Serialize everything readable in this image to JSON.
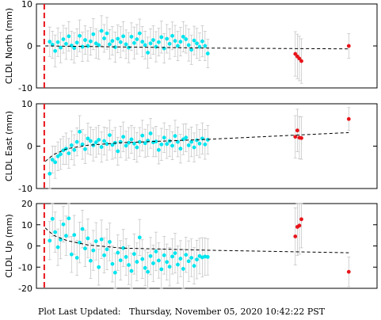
{
  "footer": {
    "label": "Plot Last Updated:",
    "timestamp": "Thursday, November 05, 2020 10:42:22 PST"
  },
  "colors": {
    "main_points": "#00e5ee",
    "recent_points": "#e8141a",
    "event_line": "#e8141a",
    "errorbars": "#c0c0c0",
    "trend": "#000000"
  },
  "chart_data": [
    {
      "type": "scatter",
      "ylabel": "CLDL North (mm)",
      "ylim": [
        -10,
        10
      ],
      "yticks": [
        -10,
        0,
        10
      ],
      "grid": false,
      "legend": "none",
      "x_range": [
        0,
        100
      ],
      "event_line_x": 2.3,
      "series": [
        {
          "kind": "main",
          "x": [
            3.9,
            4.7,
            5.5,
            6.3,
            7.1,
            7.9,
            8.7,
            9.5,
            10.3,
            11.1,
            11.9,
            12.7,
            13.5,
            14.3,
            15.1,
            15.9,
            16.7,
            17.5,
            18.3,
            19.1,
            19.9,
            20.7,
            21.5,
            22.3,
            23.1,
            23.9,
            24.7,
            25.5,
            26.3,
            27.1,
            27.9,
            28.7,
            29.5,
            30.3,
            31.1,
            31.9,
            32.7,
            33.5,
            34.3,
            35.1,
            35.9,
            36.7,
            37.5,
            38.3,
            39.1,
            39.9,
            40.7,
            41.5,
            42.3,
            43.1,
            43.9,
            44.7,
            45.5,
            46.3,
            47.1,
            47.9,
            48.7,
            49.5,
            50.3
          ],
          "y": [
            1.0,
            0.3,
            -1.2,
            0.9,
            -0.4,
            1.6,
            0.5,
            2.3,
            0.1,
            -0.5,
            0.8,
            2.4,
            -0.2,
            1.4,
            0.0,
            1.1,
            2.8,
            0.6,
            0.2,
            3.6,
            1.8,
            3.0,
            0.4,
            1.2,
            -0.3,
            1.7,
            0.9,
            2.3,
            0.4,
            -0.4,
            2.2,
            0.7,
            1.6,
            3.0,
            1.0,
            0.2,
            -1.6,
            0.6,
            1.4,
            -0.2,
            0.9,
            2.1,
            -0.6,
            1.7,
            0.5,
            2.4,
            1.2,
            0.0,
            1.0,
            2.2,
            1.6,
            0.2,
            -0.9,
            1.3,
            0.6,
            -0.2,
            1.1,
            0.0,
            -1.8
          ],
          "err": [
            3.5,
            3.2,
            3.8,
            3.4,
            3.6,
            3.3,
            3.7,
            3.5,
            3.4,
            3.6,
            3.3,
            3.8,
            3.5,
            3.4,
            3.6,
            3.3,
            3.7,
            3.5,
            3.4,
            3.6,
            3.3,
            3.8,
            3.5,
            3.4,
            3.6,
            3.3,
            3.7,
            3.5,
            3.4,
            3.6,
            3.3,
            3.8,
            3.5,
            3.4,
            3.6,
            3.3,
            3.7,
            3.5,
            3.4,
            3.6,
            3.3,
            3.8,
            3.5,
            3.4,
            3.6,
            3.3,
            3.7,
            3.5,
            3.4,
            3.6,
            3.3,
            3.8,
            3.5,
            3.4,
            3.6,
            3.3,
            3.7,
            3.5,
            3.4
          ]
        },
        {
          "kind": "recent",
          "x": [
            76.0,
            76.6,
            77.2,
            77.8,
            91.7
          ],
          "y": [
            -1.9,
            -2.5,
            -3.0,
            -3.6,
            0.0
          ],
          "err": [
            5.3,
            5.3,
            5.3,
            5.3,
            2.9
          ]
        }
      ],
      "trend": {
        "x": [
          2.6,
          50.3,
          91.7
        ],
        "y": [
          0.0,
          -0.5,
          -0.7
        ]
      }
    },
    {
      "type": "scatter",
      "ylabel": "CLDL East (mm)",
      "ylim": [
        -10,
        10
      ],
      "yticks": [
        -10,
        0,
        10
      ],
      "grid": false,
      "legend": "none",
      "x_range": [
        0,
        100
      ],
      "event_line_x": 2.3,
      "series": [
        {
          "kind": "main",
          "x": [
            3.9,
            4.7,
            5.5,
            6.3,
            7.1,
            7.9,
            8.7,
            9.5,
            10.3,
            11.1,
            11.9,
            12.7,
            13.5,
            14.3,
            15.1,
            15.9,
            16.7,
            17.5,
            18.3,
            19.1,
            19.9,
            20.7,
            21.5,
            22.3,
            23.1,
            23.9,
            24.7,
            25.5,
            26.3,
            27.1,
            27.9,
            28.7,
            29.5,
            30.3,
            31.1,
            31.9,
            32.7,
            33.5,
            34.3,
            35.1,
            35.9,
            36.7,
            37.5,
            38.3,
            39.1,
            39.9,
            40.7,
            41.5,
            42.3,
            43.1,
            43.9,
            44.7,
            45.5,
            46.3,
            47.1,
            47.9,
            48.7,
            49.5,
            50.3
          ],
          "y": [
            -6.5,
            -3.2,
            -3.8,
            -2.4,
            -1.9,
            -1.0,
            -0.6,
            -1.7,
            0.2,
            -0.9,
            1.0,
            3.4,
            0.4,
            -0.7,
            1.8,
            1.2,
            0.2,
            0.9,
            1.5,
            -0.2,
            1.2,
            0.5,
            2.6,
            0.3,
            0.8,
            -1.2,
            1.0,
            2.2,
            0.1,
            0.8,
            1.6,
            0.6,
            -0.3,
            1.0,
            2.5,
            0.7,
            1.3,
            3.0,
            0.9,
            1.1,
            -0.9,
            0.4,
            2.0,
            0.5,
            1.2,
            0.1,
            2.4,
            1.0,
            -0.6,
            1.6,
            2.0,
            0.2,
            1.0,
            -0.3,
            1.4,
            0.6,
            1.8,
            0.4,
            1.5
          ],
          "err": [
            3.5,
            3.2,
            3.8,
            3.4,
            3.6,
            3.3,
            3.7,
            3.5,
            3.4,
            3.6,
            3.3,
            3.8,
            3.5,
            3.4,
            3.6,
            3.3,
            3.7,
            3.5,
            3.4,
            3.6,
            3.3,
            3.8,
            3.5,
            3.4,
            3.6,
            3.3,
            3.7,
            3.5,
            3.4,
            3.6,
            3.3,
            3.8,
            3.5,
            3.4,
            3.6,
            3.3,
            3.7,
            3.5,
            3.4,
            3.6,
            3.3,
            3.8,
            3.5,
            3.4,
            3.6,
            3.3,
            3.7,
            3.5,
            3.4,
            3.6,
            3.3,
            3.8,
            3.5,
            3.4,
            3.6,
            3.3,
            3.7,
            3.5,
            3.4
          ]
        },
        {
          "kind": "recent",
          "x": [
            76.0,
            76.6,
            77.2,
            77.8,
            91.7
          ],
          "y": [
            2.2,
            3.7,
            2.0,
            1.9,
            6.4
          ],
          "err": [
            5.0,
            5.0,
            5.0,
            5.0,
            2.7
          ]
        }
      ],
      "trend": {
        "x": [
          2.6,
          5.0,
          9.0,
          15.0,
          25.0,
          50.3,
          91.7
        ],
        "y": [
          -3.6,
          -2.0,
          -0.6,
          0.2,
          0.8,
          1.6,
          3.2
        ]
      }
    },
    {
      "type": "scatter",
      "ylabel": "CLDL Up (mm)",
      "ylim": [
        -20,
        20
      ],
      "yticks": [
        -20,
        -10,
        0,
        10,
        20
      ],
      "grid": false,
      "legend": "none",
      "x_range": [
        0,
        100
      ],
      "event_line_x": 2.3,
      "series": [
        {
          "kind": "main",
          "x": [
            3.9,
            4.7,
            5.5,
            6.3,
            7.1,
            7.9,
            8.7,
            9.5,
            10.3,
            11.1,
            11.9,
            12.7,
            13.5,
            14.3,
            15.1,
            15.9,
            16.7,
            17.5,
            18.3,
            19.1,
            19.9,
            20.7,
            21.5,
            22.3,
            23.1,
            23.9,
            24.7,
            25.5,
            26.3,
            27.1,
            27.9,
            28.7,
            29.5,
            30.3,
            31.1,
            31.9,
            32.7,
            33.5,
            34.3,
            35.1,
            35.9,
            36.7,
            37.5,
            38.3,
            39.1,
            39.9,
            40.7,
            41.5,
            42.3,
            43.1,
            43.9,
            44.7,
            45.5,
            46.3,
            47.1,
            47.9,
            48.7,
            49.5,
            50.3
          ],
          "y": [
            2.5,
            12.8,
            6.5,
            -0.6,
            3.0,
            10.2,
            4.8,
            13.0,
            -4.0,
            5.2,
            -5.6,
            1.6,
            8.0,
            -1.2,
            3.6,
            -7.0,
            -2.1,
            2.2,
            -10.0,
            3.1,
            -4.4,
            -1.6,
            1.9,
            -8.5,
            -12.6,
            -3.2,
            -6.8,
            -1.0,
            -5.2,
            -9.0,
            -11.8,
            -3.8,
            -7.5,
            4.0,
            -6.2,
            -10.4,
            -12.2,
            -4.8,
            -8.2,
            -2.6,
            -6.9,
            -11.0,
            -4.4,
            -7.6,
            -9.8,
            -5.0,
            -3.4,
            -8.8,
            -6.0,
            -10.8,
            -4.2,
            -7.2,
            -5.6,
            -9.4,
            -6.4,
            -4.8,
            -5.4,
            -5.0,
            -5.2
          ],
          "err": [
            9.0,
            8.2,
            9.5,
            8.6,
            9.1,
            8.4,
            9.3,
            8.8,
            8.5,
            9.2,
            8.3,
            9.6,
            8.9,
            8.6,
            9.1,
            8.3,
            9.4,
            8.8,
            8.5,
            9.1,
            8.3,
            9.6,
            8.9,
            8.5,
            9.1,
            8.4,
            9.3,
            8.8,
            8.6,
            9.2,
            8.3,
            9.5,
            8.9,
            8.5,
            9.1,
            8.4,
            9.3,
            8.8,
            8.6,
            9.1,
            8.3,
            9.6,
            8.9,
            8.5,
            9.1,
            8.3,
            9.4,
            8.8,
            8.5,
            9.2,
            8.3,
            9.6,
            8.9,
            8.6,
            9.1,
            8.4,
            9.3,
            8.8,
            8.5
          ]
        },
        {
          "kind": "recent",
          "x": [
            76.0,
            76.6,
            77.2,
            77.8,
            91.7
          ],
          "y": [
            4.5,
            9.0,
            9.6,
            12.6,
            -12.2
          ],
          "err": [
            13.5,
            13.5,
            13.5,
            13.5,
            7.0
          ]
        }
      ],
      "trend": {
        "x": [
          2.6,
          5.0,
          9.0,
          15.0,
          25.0,
          50.3,
          91.7
        ],
        "y": [
          8.5,
          5.0,
          2.5,
          0.5,
          -1.0,
          -2.0,
          -3.2
        ]
      }
    }
  ]
}
